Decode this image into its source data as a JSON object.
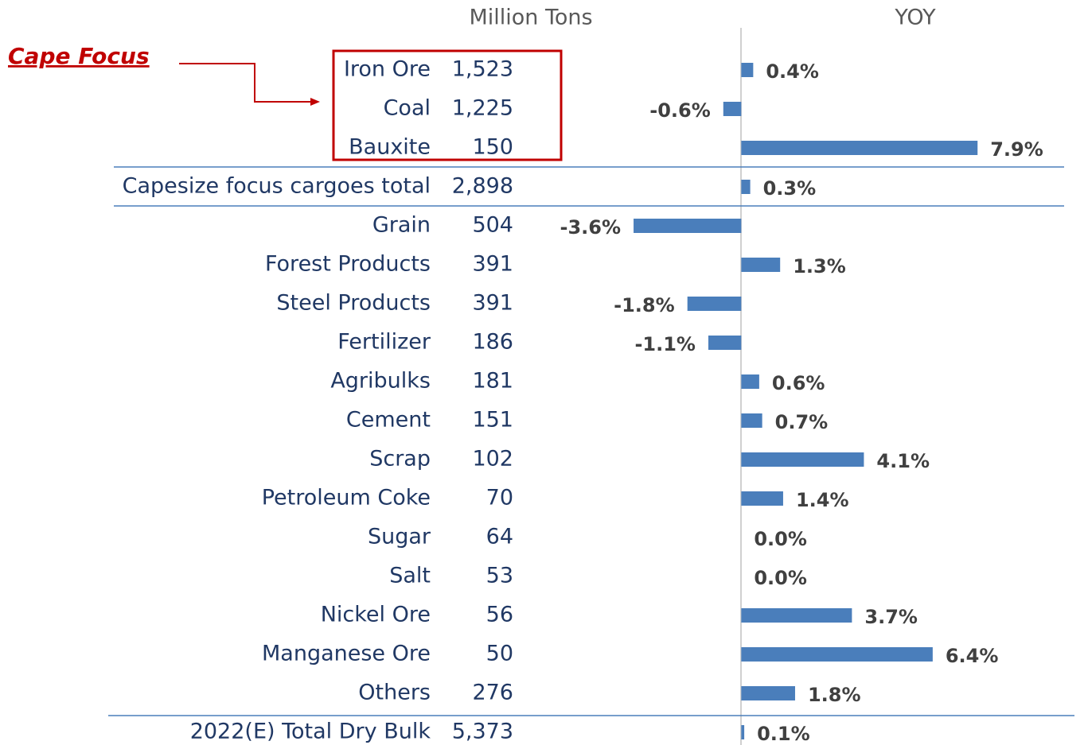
{
  "chart_data": {
    "type": "bar",
    "column_headers": [
      "Million Tons",
      "YOY"
    ],
    "annotation": "Cape Focus",
    "categories": [
      "Iron Ore",
      "Coal",
      "Bauxite",
      "Capesize focus cargoes total",
      "Grain",
      "Forest Products",
      "Steel Products",
      "Fertilizer",
      "Agribulks",
      "Cement",
      "Scrap",
      "Petroleum Coke",
      "Sugar",
      "Salt",
      "Nickel Ore",
      "Manganese Ore",
      "Others",
      "2022(E) Total Dry Bulk"
    ],
    "tons": [
      "1,523",
      "1,225",
      "150",
      "2,898",
      "504",
      "391",
      "391",
      "186",
      "181",
      "151",
      "102",
      "70",
      "64",
      "53",
      "56",
      "50",
      "276",
      "5,373"
    ],
    "values": [
      0.4,
      -0.6,
      7.9,
      0.3,
      -3.6,
      1.3,
      -1.8,
      -1.1,
      0.6,
      0.7,
      4.1,
      1.4,
      0.0,
      0.0,
      3.7,
      6.4,
      1.8,
      0.1
    ],
    "value_labels": [
      "0.4%",
      "-0.6%",
      "7.9%",
      "0.3%",
      "-3.6%",
      "1.3%",
      "-1.8%",
      "-1.1%",
      "0.6%",
      "0.7%",
      "4.1%",
      "1.4%",
      "0.0%",
      "0.0%",
      "3.7%",
      "6.4%",
      "1.8%",
      "0.1%"
    ],
    "color": "#4a7ebb",
    "xlim": [
      -4,
      8
    ]
  }
}
